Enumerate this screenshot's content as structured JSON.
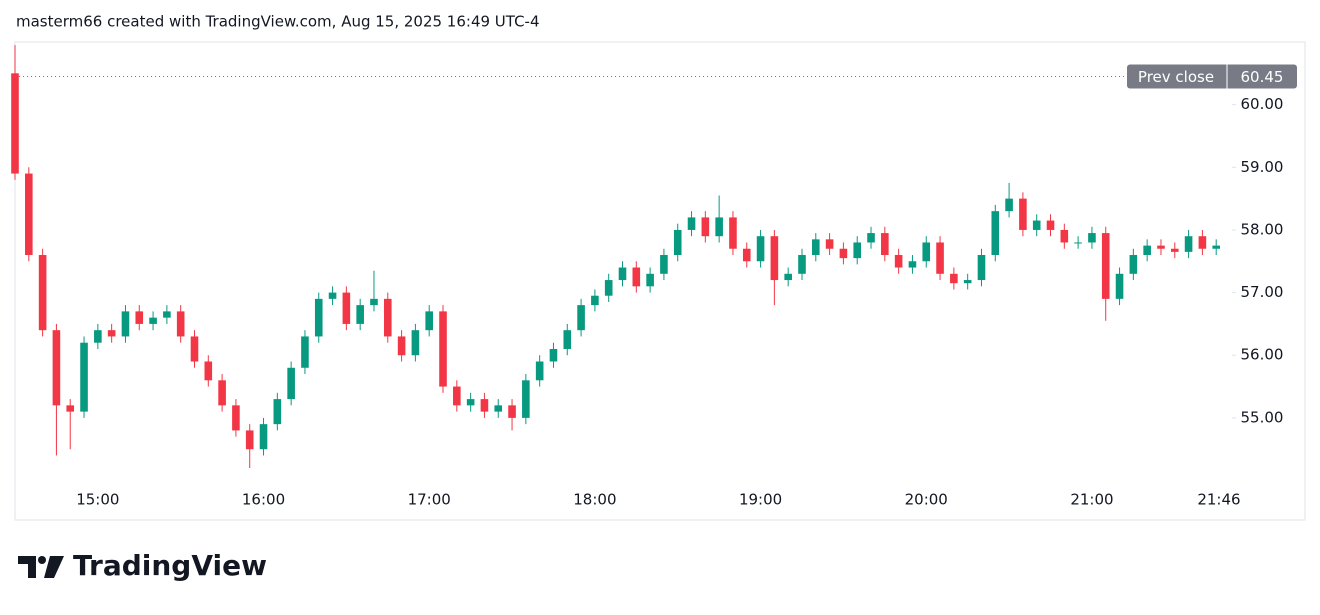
{
  "header": "masterm66 created with TradingView.com, Aug 15, 2025 16:49 UTC-4",
  "brand": "TradingView",
  "chart_data": {
    "type": "candlestick",
    "x": [
      "14:30",
      "14:35",
      "14:40",
      "14:45",
      "14:50",
      "14:55",
      "15:00",
      "15:05",
      "15:10",
      "15:15",
      "15:20",
      "15:25",
      "15:30",
      "15:35",
      "15:40",
      "15:45",
      "15:50",
      "15:55",
      "16:00",
      "16:05",
      "16:10",
      "16:15",
      "16:20",
      "16:25",
      "16:30",
      "16:35",
      "16:40",
      "16:45",
      "16:50",
      "16:55",
      "17:00",
      "17:05",
      "17:10",
      "17:15",
      "17:20",
      "17:25",
      "17:30",
      "17:35",
      "17:40",
      "17:45",
      "17:50",
      "17:55",
      "18:00",
      "18:05",
      "18:10",
      "18:15",
      "18:20",
      "18:25",
      "18:30",
      "18:35",
      "18:40",
      "18:45",
      "18:50",
      "18:55",
      "19:00",
      "19:05",
      "19:10",
      "19:15",
      "19:20",
      "19:25",
      "19:30",
      "19:35",
      "19:40",
      "19:45",
      "19:50",
      "19:55",
      "20:00",
      "20:05",
      "20:10",
      "20:15",
      "20:20",
      "20:25",
      "20:30",
      "20:35",
      "20:40",
      "20:45",
      "20:50",
      "20:55",
      "21:00",
      "21:05",
      "21:10",
      "21:15",
      "21:20",
      "21:25",
      "21:30",
      "21:35",
      "21:40",
      "21:45"
    ],
    "open": [
      60.5,
      58.9,
      57.6,
      56.4,
      55.2,
      55.1,
      56.2,
      56.4,
      56.3,
      56.7,
      56.5,
      56.6,
      56.7,
      56.3,
      55.9,
      55.6,
      55.2,
      54.8,
      54.5,
      54.9,
      55.3,
      55.8,
      56.3,
      56.9,
      57.0,
      56.5,
      56.8,
      56.9,
      56.3,
      56.0,
      56.4,
      56.7,
      55.5,
      55.2,
      55.3,
      55.1,
      55.2,
      55.0,
      55.6,
      55.9,
      56.1,
      56.4,
      56.8,
      56.95,
      57.2,
      57.4,
      57.1,
      57.3,
      57.6,
      58.0,
      58.2,
      57.9,
      58.2,
      57.7,
      57.5,
      57.9,
      57.2,
      57.3,
      57.6,
      57.85,
      57.7,
      57.55,
      57.8,
      57.95,
      57.6,
      57.4,
      57.5,
      57.8,
      57.3,
      57.15,
      57.2,
      57.6,
      58.3,
      58.5,
      58.0,
      58.15,
      58.0,
      57.8,
      57.8,
      57.95,
      56.9,
      57.3,
      57.6,
      57.75,
      57.7,
      57.65,
      57.9,
      57.7
    ],
    "high": [
      60.95,
      59.0,
      57.7,
      56.5,
      55.3,
      56.3,
      56.5,
      56.5,
      56.8,
      56.8,
      56.7,
      56.8,
      56.8,
      56.4,
      56.0,
      55.7,
      55.3,
      54.9,
      55.0,
      55.4,
      55.9,
      56.4,
      57.0,
      57.1,
      57.1,
      56.9,
      57.35,
      57.0,
      56.4,
      56.5,
      56.8,
      56.8,
      55.6,
      55.4,
      55.4,
      55.3,
      55.3,
      55.7,
      56.0,
      56.2,
      56.5,
      56.9,
      57.05,
      57.3,
      57.5,
      57.5,
      57.4,
      57.7,
      58.1,
      58.3,
      58.3,
      58.55,
      58.3,
      57.8,
      58.0,
      58.0,
      57.4,
      57.7,
      57.95,
      57.95,
      57.8,
      57.9,
      58.05,
      58.05,
      57.7,
      57.6,
      57.9,
      57.9,
      57.4,
      57.3,
      57.7,
      58.4,
      58.75,
      58.6,
      58.25,
      58.25,
      58.1,
      57.9,
      58.05,
      58.05,
      57.4,
      57.7,
      57.85,
      57.85,
      57.8,
      58.0,
      58.0,
      57.85
    ],
    "low": [
      58.8,
      57.5,
      56.3,
      54.4,
      54.5,
      55.0,
      56.1,
      56.2,
      56.2,
      56.4,
      56.4,
      56.5,
      56.2,
      55.8,
      55.5,
      55.1,
      54.7,
      54.2,
      54.4,
      54.8,
      55.2,
      55.7,
      56.2,
      56.8,
      56.4,
      56.4,
      56.7,
      56.2,
      55.9,
      55.9,
      56.3,
      55.4,
      55.1,
      55.1,
      55.0,
      55.0,
      54.8,
      54.9,
      55.5,
      55.8,
      56.0,
      56.3,
      56.7,
      56.85,
      57.1,
      57.0,
      57.0,
      57.2,
      57.5,
      57.9,
      57.8,
      57.8,
      57.6,
      57.4,
      57.4,
      56.8,
      57.1,
      57.2,
      57.5,
      57.6,
      57.45,
      57.45,
      57.7,
      57.5,
      57.3,
      57.3,
      57.4,
      57.2,
      57.05,
      57.05,
      57.1,
      57.5,
      58.2,
      57.9,
      57.9,
      57.9,
      57.7,
      57.7,
      57.7,
      56.55,
      56.8,
      57.2,
      57.5,
      57.6,
      57.55,
      57.55,
      57.6,
      57.6
    ],
    "close": [
      58.9,
      57.6,
      56.4,
      55.2,
      55.1,
      56.2,
      56.4,
      56.3,
      56.7,
      56.5,
      56.6,
      56.7,
      56.3,
      55.9,
      55.6,
      55.2,
      54.8,
      54.5,
      54.9,
      55.3,
      55.8,
      56.3,
      56.9,
      57.0,
      56.5,
      56.8,
      56.9,
      56.3,
      56.0,
      56.4,
      56.7,
      55.5,
      55.2,
      55.3,
      55.1,
      55.2,
      55.0,
      55.6,
      55.9,
      56.1,
      56.4,
      56.8,
      56.95,
      57.2,
      57.4,
      57.1,
      57.3,
      57.6,
      58.0,
      58.2,
      57.9,
      58.2,
      57.7,
      57.5,
      57.9,
      57.2,
      57.3,
      57.6,
      57.85,
      57.7,
      57.55,
      57.8,
      57.95,
      57.6,
      57.4,
      57.5,
      57.8,
      57.3,
      57.15,
      57.2,
      57.6,
      58.3,
      58.5,
      58.0,
      58.15,
      58.0,
      57.8,
      57.8,
      57.95,
      56.9,
      57.3,
      57.6,
      57.75,
      57.7,
      57.65,
      57.9,
      57.7,
      57.75
    ],
    "up_color": "#089981",
    "down_color": "#f23645",
    "xlim": [
      "14:30",
      "21:50"
    ],
    "xticks": [
      "15:00",
      "16:00",
      "17:00",
      "18:00",
      "19:00",
      "20:00",
      "21:00",
      "21:46"
    ],
    "ylim": [
      53.37,
      61.0
    ],
    "yticks": [
      {
        "value": 55,
        "label": "55.00"
      },
      {
        "value": 56,
        "label": "56.00"
      },
      {
        "value": 57,
        "label": "57.00"
      },
      {
        "value": 58,
        "label": "58.00"
      },
      {
        "value": 59,
        "label": "59.00"
      },
      {
        "value": 60,
        "label": "60.00"
      }
    ],
    "prev_close": {
      "label": "Prev close",
      "value": 60.45,
      "color": "#787b86"
    }
  }
}
